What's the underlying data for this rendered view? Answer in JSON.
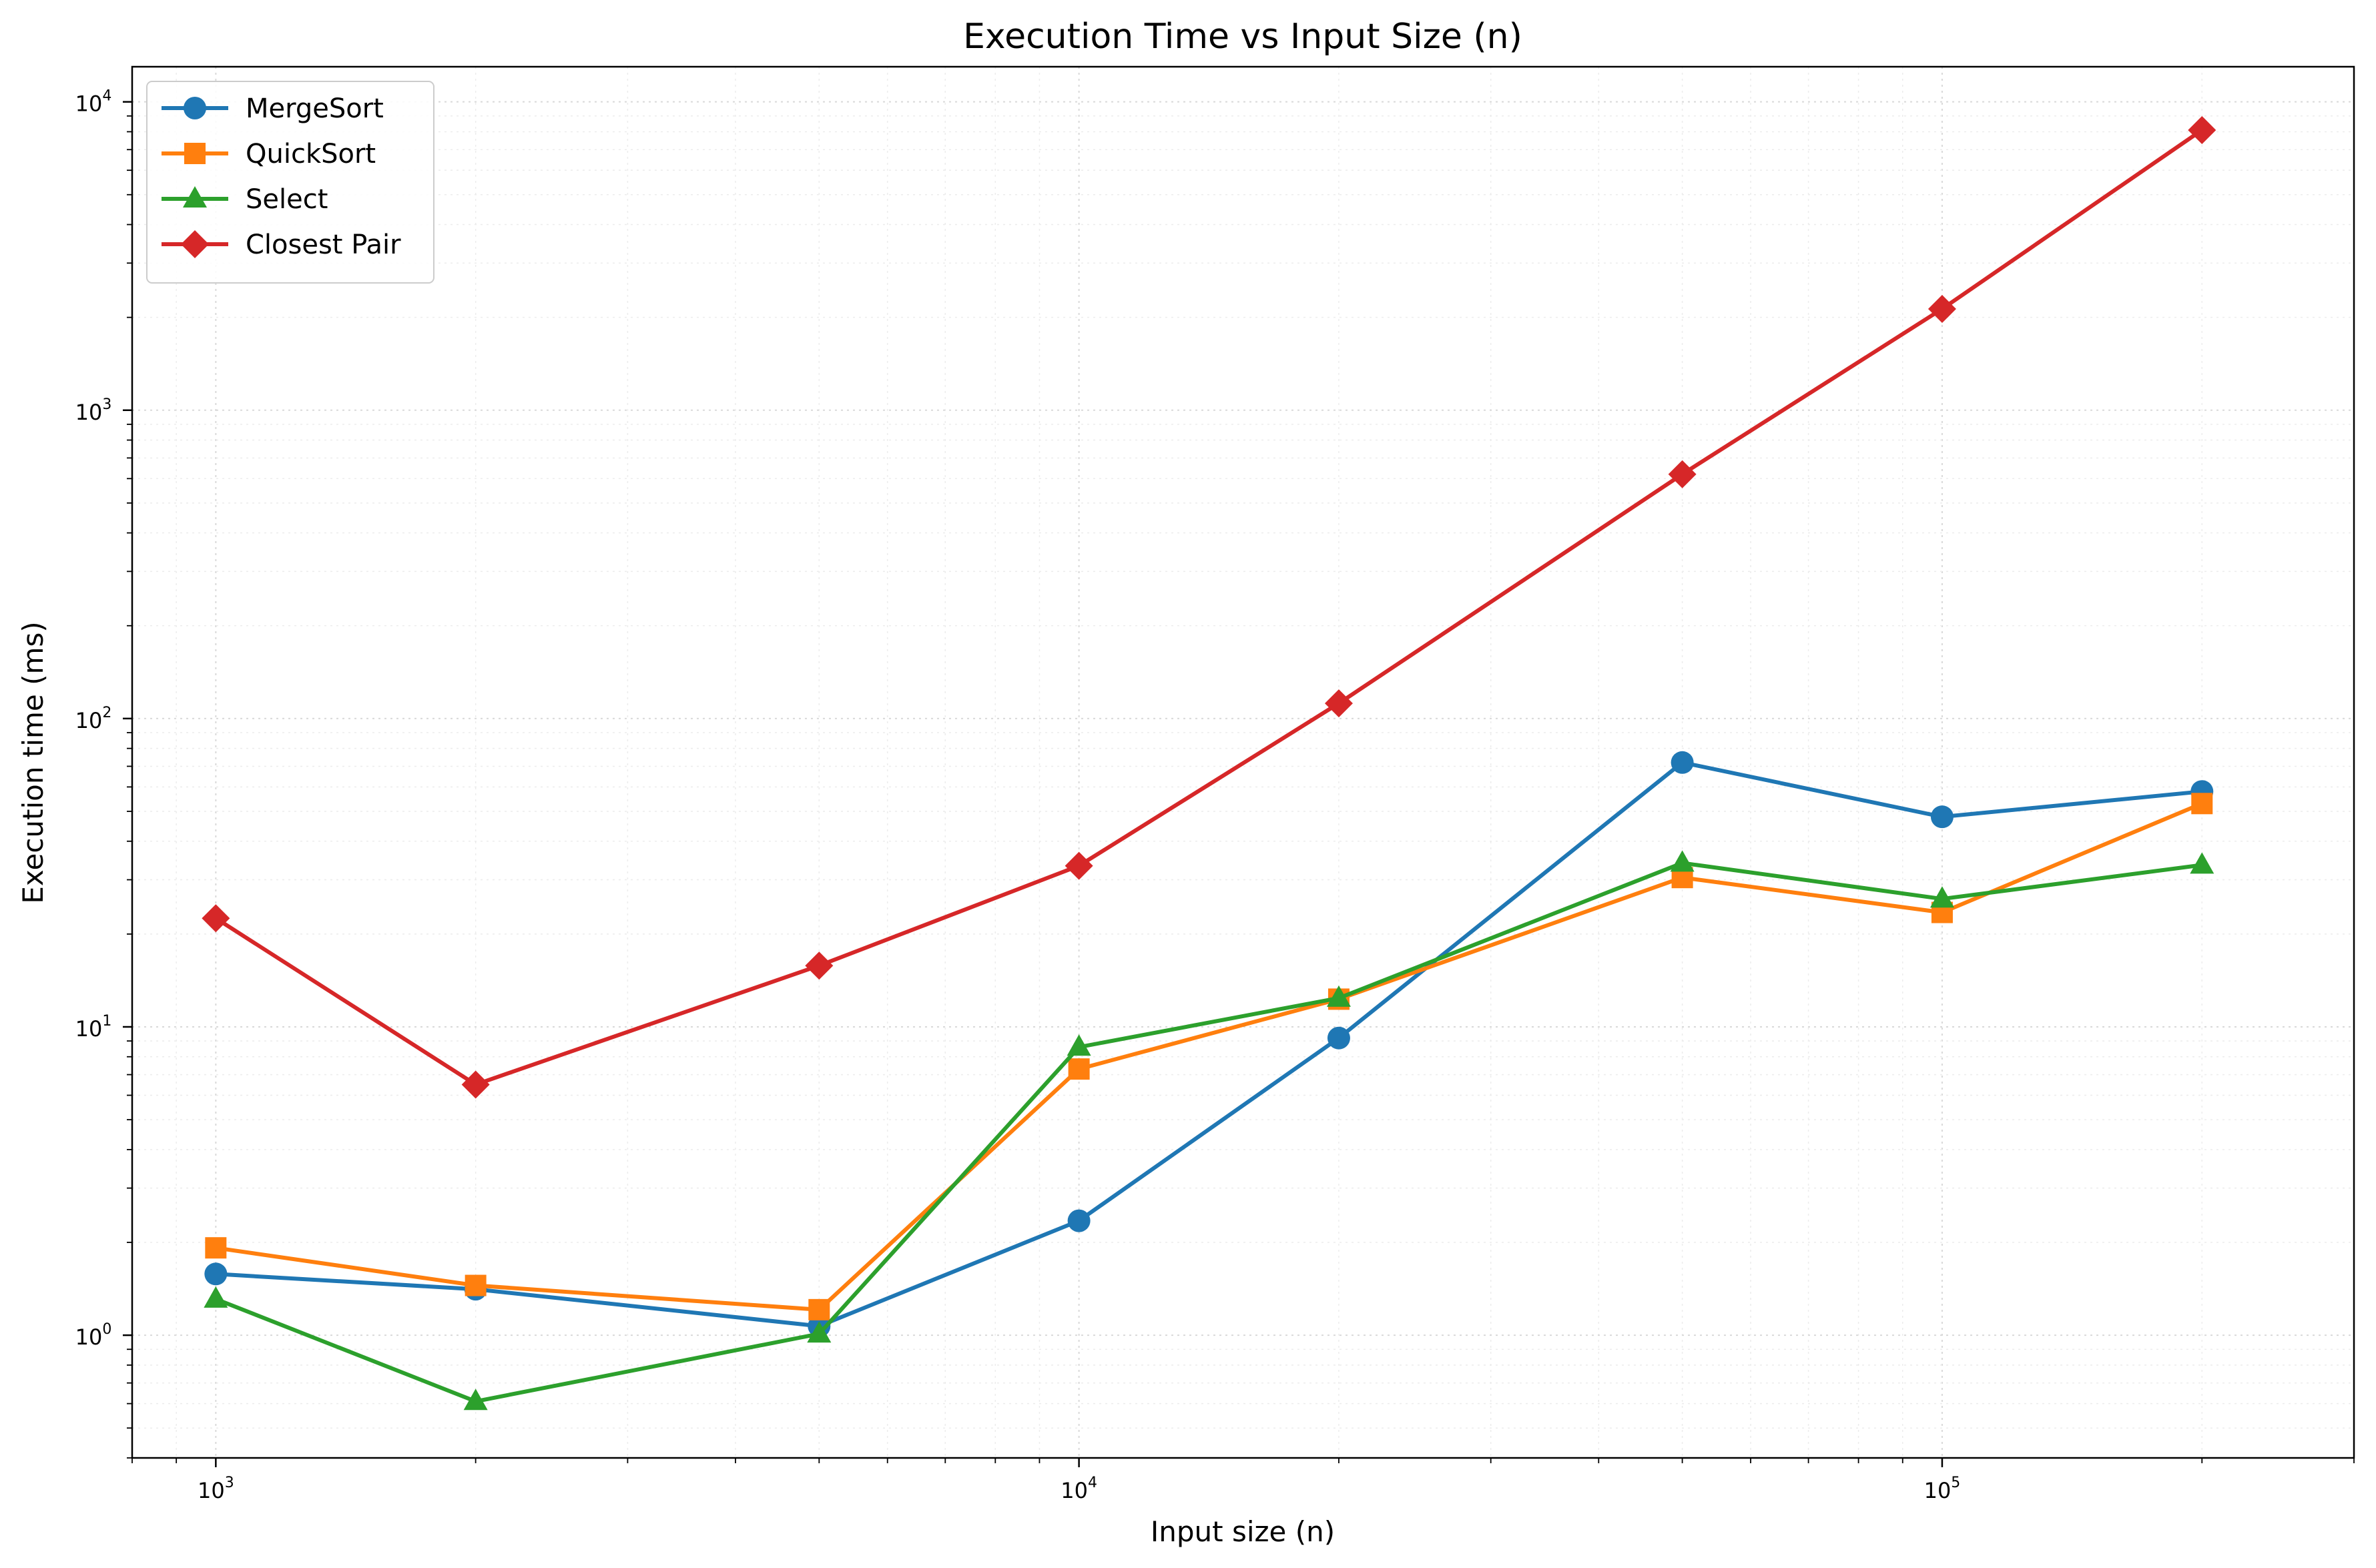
{
  "chart_data": {
    "type": "line",
    "title": "Execution Time vs Input Size (n)",
    "xlabel": "Input size (n)",
    "ylabel": "Execution time (ms)",
    "xscale": "log",
    "yscale": "log",
    "xlim": [
      800,
      300000
    ],
    "ylim": [
      0.4,
      13000
    ],
    "x_ticks": [
      {
        "value": 1000,
        "base": "10",
        "exp": "3"
      },
      {
        "value": 10000,
        "base": "10",
        "exp": "4"
      },
      {
        "value": 100000,
        "base": "10",
        "exp": "5"
      }
    ],
    "y_ticks": [
      {
        "value": 1,
        "base": "10",
        "exp": "0"
      },
      {
        "value": 10,
        "base": "10",
        "exp": "1"
      },
      {
        "value": 100,
        "base": "10",
        "exp": "2"
      },
      {
        "value": 1000,
        "base": "10",
        "exp": "3"
      },
      {
        "value": 10000,
        "base": "10",
        "exp": "4"
      }
    ],
    "grid": true,
    "legend_position": "top-left",
    "x": [
      1000,
      2000,
      5000,
      10000,
      20000,
      50000,
      100000,
      200000
    ],
    "series": [
      {
        "name": "MergeSort",
        "color": "#1f77b4",
        "marker": "circle",
        "values": [
          1.58,
          1.41,
          1.07,
          2.35,
          9.2,
          72,
          48,
          58
        ]
      },
      {
        "name": "QuickSort",
        "color": "#ff7f0e",
        "marker": "square",
        "values": [
          1.92,
          1.45,
          1.21,
          7.3,
          12.3,
          30.5,
          23.5,
          53
        ]
      },
      {
        "name": "Select",
        "color": "#2ca02c",
        "marker": "triangle",
        "values": [
          1.31,
          0.61,
          1.01,
          8.6,
          12.4,
          34,
          26,
          33.5
        ]
      },
      {
        "name": "Closest Pair",
        "color": "#d62728",
        "marker": "diamond",
        "values": [
          22.5,
          6.5,
          15.8,
          33.3,
          112,
          620,
          2130,
          8100
        ]
      }
    ]
  }
}
